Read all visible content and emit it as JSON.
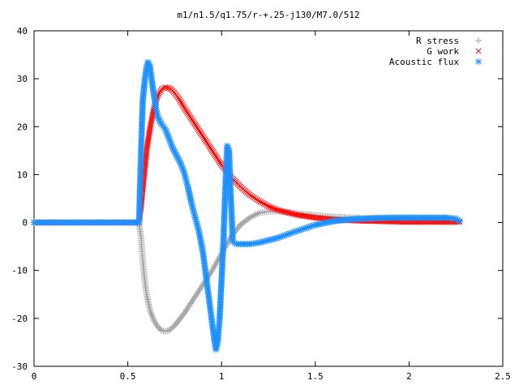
{
  "chart_data": {
    "type": "scatter",
    "title": "m1/n1.5/q1.75/r-+.25-j130/M7.0/512",
    "xlabel": "",
    "ylabel": "",
    "xlim": [
      0,
      2.5
    ],
    "ylim": [
      -30,
      40
    ],
    "xticks": [
      0,
      0.5,
      1,
      1.5,
      2,
      2.5
    ],
    "xtick_labels": [
      "0",
      "0.5",
      "1",
      "1.5",
      "2",
      "2.5"
    ],
    "yticks": [
      -30,
      -20,
      -10,
      0,
      10,
      20,
      30,
      40
    ],
    "ytick_labels": [
      "-30",
      "-20",
      "-10",
      "0",
      "10",
      "20",
      "30",
      "40"
    ],
    "grid": false,
    "legend_position": "top-right",
    "series": [
      {
        "name": "R stress",
        "color": "#a0a0a0",
        "marker": "plus",
        "x": [
          0.0,
          0.2,
          0.4,
          0.56,
          0.57,
          0.58,
          0.59,
          0.6,
          0.62,
          0.64,
          0.66,
          0.68,
          0.7,
          0.72,
          0.75,
          0.8,
          0.85,
          0.9,
          0.95,
          1.0,
          1.05,
          1.1,
          1.15,
          1.2,
          1.25,
          1.3,
          1.35,
          1.4,
          1.5,
          1.6,
          1.7,
          1.8,
          1.9,
          2.0,
          2.1,
          2.2,
          2.27
        ],
        "y": [
          0,
          0,
          0,
          0,
          -3,
          -8,
          -12,
          -15,
          -18.5,
          -20.5,
          -21.8,
          -22.5,
          -22.7,
          -22.5,
          -21.5,
          -19,
          -16,
          -13,
          -10,
          -6.5,
          -3,
          -0.5,
          1,
          2,
          2.3,
          2.4,
          2.2,
          1.9,
          1.5,
          1.2,
          1.0,
          0.8,
          0.6,
          0.4,
          0.3,
          0.2,
          0.2
        ]
      },
      {
        "name": "G work",
        "color": "#ff0000",
        "marker": "cross",
        "x": [
          0.0,
          0.2,
          0.4,
          0.56,
          0.57,
          0.58,
          0.59,
          0.6,
          0.62,
          0.64,
          0.66,
          0.68,
          0.7,
          0.72,
          0.74,
          0.77,
          0.8,
          0.85,
          0.9,
          0.95,
          1.0,
          1.05,
          1.1,
          1.15,
          1.2,
          1.25,
          1.3,
          1.4,
          1.5,
          1.6,
          1.7,
          1.8,
          1.9,
          2.0,
          2.1,
          2.2,
          2.27
        ],
        "y": [
          0,
          0,
          0,
          0,
          3,
          7,
          11,
          15,
          20,
          24,
          26.5,
          27.8,
          28.2,
          28.1,
          27.5,
          26,
          24,
          21,
          18,
          15,
          12,
          9.5,
          7.5,
          5.8,
          4.5,
          3.4,
          2.6,
          1.6,
          1.0,
          0.6,
          0.4,
          0.3,
          0.2,
          0.1,
          0.1,
          0.1,
          0.1
        ]
      },
      {
        "name": "Acoustic flux",
        "color": "#1e90ff",
        "marker": "star",
        "x": [
          0.0,
          0.2,
          0.4,
          0.56,
          0.565,
          0.57,
          0.575,
          0.58,
          0.59,
          0.6,
          0.605,
          0.61,
          0.615,
          0.62,
          0.625,
          0.63,
          0.64,
          0.65,
          0.66,
          0.68,
          0.7,
          0.72,
          0.74,
          0.76,
          0.78,
          0.8,
          0.82,
          0.84,
          0.86,
          0.88,
          0.9,
          0.92,
          0.94,
          0.96,
          0.97,
          0.98,
          0.99,
          1.0,
          1.01,
          1.02,
          1.03,
          1.04,
          1.05,
          1.06,
          1.08,
          1.1,
          1.15,
          1.2,
          1.3,
          1.4,
          1.5,
          1.6,
          1.7,
          1.8,
          1.9,
          2.0,
          2.1,
          2.2,
          2.25,
          2.27
        ],
        "y": [
          0,
          0,
          0,
          0,
          7.5,
          14,
          20,
          25.5,
          29.5,
          32.5,
          33.3,
          33.4,
          33,
          32,
          30.5,
          29,
          26.5,
          24,
          22,
          20.5,
          19.5,
          17.5,
          15.5,
          14,
          12.5,
          10.5,
          7.5,
          4,
          1,
          -2,
          -6,
          -12,
          -18,
          -24,
          -26.5,
          -25,
          -20,
          -12,
          -4,
          7,
          16,
          15,
          5,
          -4,
          -4.5,
          -4.5,
          -4.5,
          -4.2,
          -3.2,
          -1.8,
          -0.5,
          0.3,
          0.7,
          0.9,
          1.0,
          1.0,
          1.0,
          1.0,
          0.8,
          0.3
        ]
      }
    ]
  }
}
